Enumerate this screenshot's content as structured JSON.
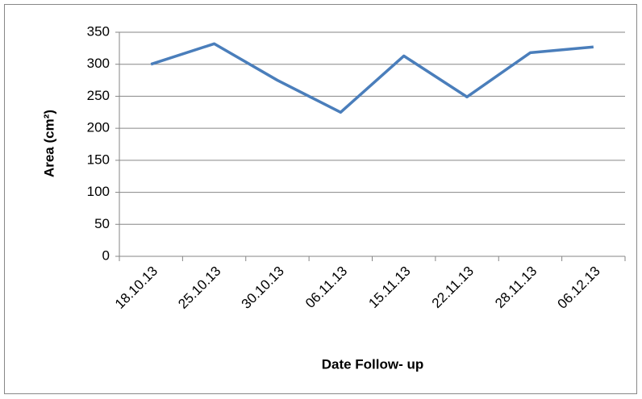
{
  "chart_data": {
    "type": "line",
    "categories": [
      "18.10.13",
      "25.10.13",
      "30.10.13",
      "06.11.13",
      "15.11.13",
      "22.11.13",
      "28.11.13",
      "06.12.13"
    ],
    "series": [
      {
        "name": "Area",
        "color": "#4a7ebb",
        "values": [
          300,
          332,
          275,
          225,
          313,
          249,
          318,
          327
        ]
      }
    ],
    "ylim": [
      0,
      350
    ],
    "yticks": [
      0,
      50,
      100,
      150,
      200,
      250,
      300,
      350
    ],
    "grid": true,
    "xlabel": "Date Follow- up",
    "ylabel": "Area (cm²)"
  }
}
